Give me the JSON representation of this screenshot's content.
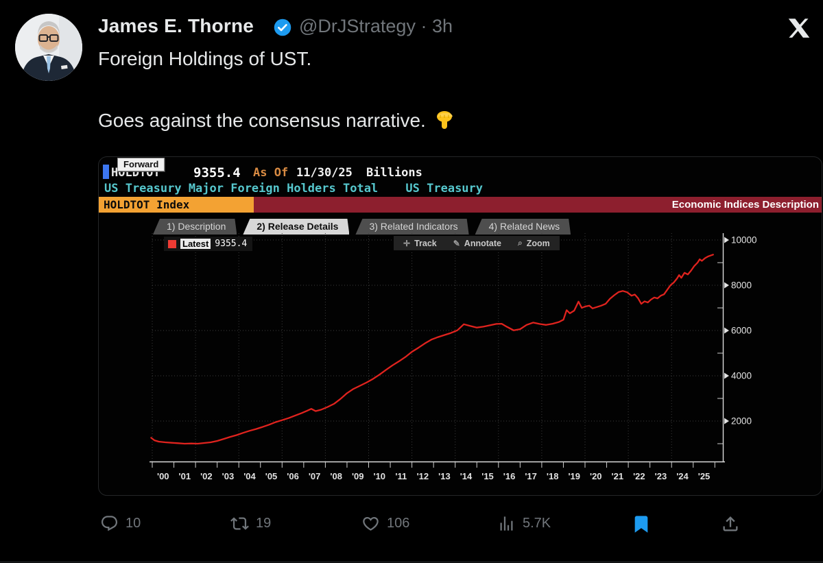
{
  "tweet": {
    "author": "James E. Thorne",
    "handle": "@DrJStrategy",
    "separator": "·",
    "time": "3h",
    "line1": "Foreign Holdings of UST.",
    "line2": "Goes against the consensus narrative.",
    "engagement": {
      "replies": "10",
      "reposts": "19",
      "likes": "106",
      "views": "5.7K"
    },
    "accent_blue": "#1d9bf0"
  },
  "terminal": {
    "ticker": "HOLDTOT",
    "tooltip": "Forward",
    "value": "9355.4",
    "as_of_label": "As Of",
    "as_of_date": "11/30/25",
    "unit": "Billions",
    "series_title": "US Treasury Major Foreign Holders Total",
    "source": "US Treasury",
    "index_badge": "HOLDTOT  Index",
    "screen_title": "Economic Indices Description",
    "tabs": [
      {
        "label": "1) Description",
        "selected": false
      },
      {
        "label": "2) Release Details",
        "selected": true
      },
      {
        "label": "3) Related Indicators",
        "selected": false
      },
      {
        "label": "4) Related News",
        "selected": false
      }
    ],
    "legend": {
      "label": "Latest",
      "value": "9355.4"
    },
    "toolbar": [
      {
        "icon": "✛",
        "label": "Track"
      },
      {
        "icon": "✎",
        "label": "Annotate"
      },
      {
        "icon": "⌕",
        "label": "Zoom"
      }
    ],
    "colors": {
      "amber": "#f3a233",
      "maroon": "#8d1f2e",
      "cyan": "#56c7cd",
      "line_red": "#e0231e"
    }
  },
  "chart_data": {
    "type": "line",
    "title": "US Treasury Major Foreign Holders Total (HOLDTOT Index), Billions USD",
    "legend_entry": "Latest 9355.4",
    "latest": 9355.4,
    "ylim": [
      0,
      10400
    ],
    "xlim": [
      2000,
      2026
    ],
    "yticks": [
      2000,
      4000,
      6000,
      8000,
      10000
    ],
    "grid": "dotted",
    "legend_position": "top-left",
    "xticklabels": [
      "'00",
      "'01",
      "'02",
      "'03",
      "'04",
      "'05",
      "'06",
      "'07",
      "'08",
      "'09",
      "'10",
      "'11",
      "'12",
      "'13",
      "'14",
      "'15",
      "'16",
      "'17",
      "'18",
      "'19",
      "'20",
      "'21",
      "'22",
      "'23",
      "'24",
      "'25"
    ],
    "x": [
      1999.95,
      2000.1,
      2000.3,
      2000.6,
      2000.9,
      2001.2,
      2001.5,
      2001.8,
      2002.1,
      2002.4,
      2002.7,
      2003.0,
      2003.3,
      2003.6,
      2003.9,
      2004.2,
      2004.5,
      2004.8,
      2005.1,
      2005.4,
      2005.7,
      2006.0,
      2006.3,
      2006.6,
      2006.9,
      2007.15,
      2007.35,
      2007.55,
      2007.8,
      2008.1,
      2008.4,
      2008.7,
      2009.0,
      2009.3,
      2009.6,
      2009.9,
      2010.2,
      2010.5,
      2010.8,
      2011.1,
      2011.4,
      2011.7,
      2012.0,
      2012.3,
      2012.6,
      2012.9,
      2013.2,
      2013.5,
      2013.8,
      2014.1,
      2014.4,
      2014.7,
      2015.0,
      2015.3,
      2015.6,
      2015.9,
      2016.15,
      2016.4,
      2016.7,
      2017.0,
      2017.3,
      2017.6,
      2017.9,
      2018.2,
      2018.5,
      2018.8,
      2019.0,
      2019.15,
      2019.3,
      2019.5,
      2019.7,
      2019.85,
      2020.0,
      2020.2,
      2020.35,
      2020.55,
      2020.75,
      2020.95,
      2021.15,
      2021.35,
      2021.55,
      2021.75,
      2021.95,
      2022.15,
      2022.3,
      2022.45,
      2022.6,
      2022.75,
      2022.9,
      2023.05,
      2023.2,
      2023.35,
      2023.5,
      2023.65,
      2023.8,
      2023.95,
      2024.1,
      2024.25,
      2024.35,
      2024.45,
      2024.6,
      2024.75,
      2024.9,
      2025.05,
      2025.2,
      2025.3,
      2025.4,
      2025.55,
      2025.7,
      2025.92
    ],
    "values": [
      1260,
      1150,
      1090,
      1060,
      1040,
      1020,
      1000,
      1010,
      1000,
      1030,
      1060,
      1120,
      1210,
      1300,
      1380,
      1480,
      1570,
      1650,
      1740,
      1840,
      1950,
      2040,
      2130,
      2240,
      2350,
      2450,
      2540,
      2440,
      2500,
      2620,
      2760,
      2980,
      3230,
      3420,
      3560,
      3700,
      3860,
      4050,
      4260,
      4460,
      4640,
      4830,
      5060,
      5240,
      5430,
      5600,
      5710,
      5800,
      5890,
      6010,
      6280,
      6200,
      6130,
      6170,
      6230,
      6290,
      6300,
      6160,
      6010,
      6060,
      6250,
      6350,
      6290,
      6250,
      6300,
      6380,
      6480,
      6900,
      6760,
      6880,
      7280,
      7000,
      7060,
      7100,
      6980,
      7040,
      7100,
      7180,
      7400,
      7560,
      7700,
      7750,
      7690,
      7540,
      7590,
      7430,
      7180,
      7290,
      7240,
      7370,
      7460,
      7420,
      7540,
      7600,
      7800,
      8000,
      8120,
      8300,
      8450,
      8330,
      8550,
      8480,
      8650,
      8850,
      9000,
      9150,
      9080,
      9200,
      9280,
      9355.4
    ],
    "series_color": "#e0231e"
  }
}
